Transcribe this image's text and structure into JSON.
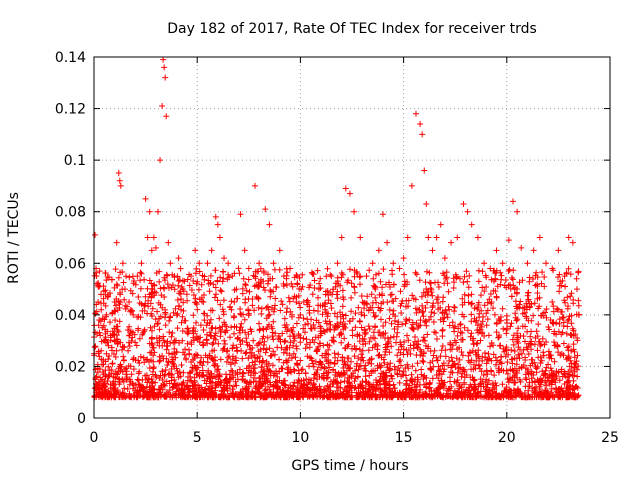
{
  "chart_data": {
    "type": "scatter",
    "title": "Day 182 of 2017, Rate Of TEC Index for receiver trds",
    "xlabel": "GPS time / hours",
    "ylabel": "ROTI / TECUs",
    "xlim": [
      0,
      25
    ],
    "ylim": [
      0,
      0.14
    ],
    "xticks": [
      0,
      5,
      10,
      15,
      20,
      25
    ],
    "yticks": [
      0,
      0.02,
      0.04,
      0.06,
      0.08,
      0.1,
      0.12,
      0.14
    ],
    "xtick_labels": [
      "0",
      "5",
      "10",
      "15",
      "20",
      "25"
    ],
    "ytick_labels": [
      "0",
      "0.02",
      "0.04",
      "0.06",
      "0.08",
      "0.1",
      "0.12",
      "0.14"
    ],
    "grid": true,
    "marker": "plus",
    "color": "#ff0000",
    "series": [
      {
        "x": [
          0.05,
          0.1,
          0.15,
          0.2,
          0.25,
          0.3,
          0.35,
          0.4,
          0.5,
          0.6,
          0.7,
          0.8,
          1.0,
          1.1,
          1.2,
          1.25,
          1.3,
          1.4,
          1.5,
          1.7,
          1.9,
          2.1,
          2.3,
          2.5,
          2.6,
          2.7,
          2.8,
          2.9,
          3.0,
          3.1,
          3.2,
          3.3,
          3.35,
          3.4,
          3.45,
          3.5,
          3.6,
          3.7,
          3.9,
          4.1,
          4.3,
          4.5,
          4.7,
          4.9,
          5.1,
          5.3,
          5.5,
          5.7,
          5.9,
          6.0,
          6.1,
          6.3,
          6.5,
          6.7,
          6.9,
          7.1,
          7.3,
          7.5,
          7.8,
          8.0,
          8.3,
          8.5,
          8.7,
          9.0,
          9.2,
          9.5,
          9.8,
          10.0,
          10.3,
          10.6,
          10.9,
          11.2,
          11.5,
          11.8,
          12.0,
          12.2,
          12.4,
          12.6,
          12.9,
          13.2,
          13.5,
          13.8,
          14.0,
          14.2,
          14.5,
          14.8,
          15.0,
          15.2,
          15.4,
          15.6,
          15.8,
          15.9,
          16.0,
          16.1,
          16.2,
          16.4,
          16.6,
          16.8,
          17.0,
          17.3,
          17.6,
          17.9,
          18.1,
          18.3,
          18.6,
          18.9,
          19.2,
          19.5,
          19.8,
          20.1,
          20.3,
          20.5,
          20.7,
          21.0,
          21.3,
          21.6,
          21.9,
          22.2,
          22.5,
          22.8,
          23.0,
          23.2,
          23.4,
          23.5
        ],
        "y": [
          0.071,
          0.058,
          0.052,
          0.045,
          0.038,
          0.032,
          0.042,
          0.035,
          0.03,
          0.04,
          0.028,
          0.032,
          0.045,
          0.068,
          0.095,
          0.092,
          0.09,
          0.06,
          0.05,
          0.045,
          0.04,
          0.055,
          0.06,
          0.085,
          0.07,
          0.08,
          0.065,
          0.07,
          0.066,
          0.08,
          0.1,
          0.121,
          0.139,
          0.136,
          0.132,
          0.117,
          0.068,
          0.06,
          0.055,
          0.062,
          0.05,
          0.048,
          0.055,
          0.065,
          0.06,
          0.045,
          0.06,
          0.065,
          0.078,
          0.075,
          0.07,
          0.062,
          0.06,
          0.055,
          0.05,
          0.079,
          0.065,
          0.058,
          0.09,
          0.06,
          0.081,
          0.075,
          0.06,
          0.065,
          0.055,
          0.058,
          0.045,
          0.04,
          0.045,
          0.048,
          0.05,
          0.042,
          0.055,
          0.06,
          0.07,
          0.089,
          0.087,
          0.08,
          0.07,
          0.055,
          0.06,
          0.065,
          0.079,
          0.068,
          0.06,
          0.058,
          0.062,
          0.07,
          0.09,
          0.118,
          0.114,
          0.11,
          0.096,
          0.083,
          0.07,
          0.065,
          0.07,
          0.075,
          0.062,
          0.068,
          0.07,
          0.083,
          0.08,
          0.075,
          0.07,
          0.06,
          0.058,
          0.065,
          0.06,
          0.069,
          0.084,
          0.08,
          0.066,
          0.06,
          0.065,
          0.07,
          0.06,
          0.058,
          0.065,
          0.055,
          0.07,
          0.068,
          0.05,
          0.04
        ]
      }
    ]
  }
}
